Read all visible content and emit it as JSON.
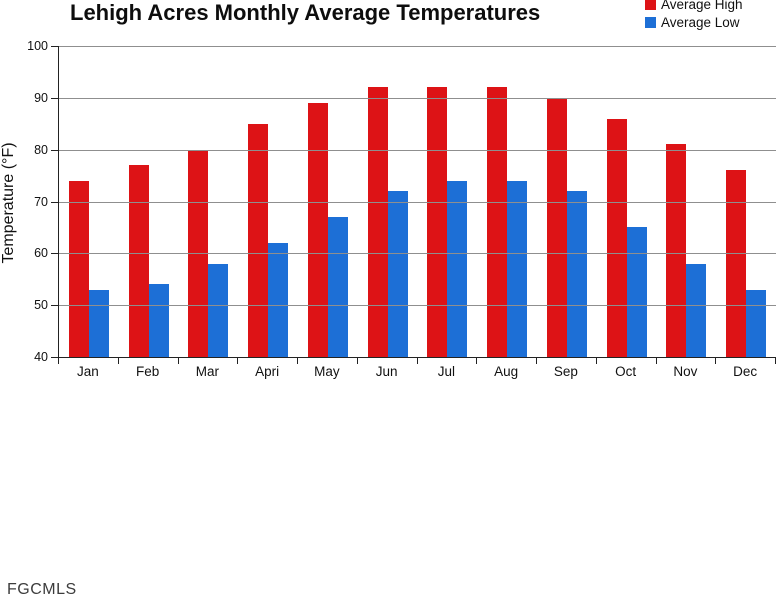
{
  "chart_data": {
    "type": "bar",
    "title": "Lehigh Acres Monthly Average Temperatures",
    "ylabel": "Temperature (°F)",
    "categories": [
      "Jan",
      "Feb",
      "Mar",
      "Apri",
      "May",
      "Jun",
      "Jul",
      "Aug",
      "Sep",
      "Oct",
      "Nov",
      "Dec"
    ],
    "series": [
      {
        "name": "Average High",
        "color": "#dd1316",
        "values": [
          74,
          77,
          80,
          85,
          89,
          92,
          92,
          92,
          90,
          86,
          81,
          76
        ]
      },
      {
        "name": "Average Low",
        "color": "#1d6fd6",
        "values": [
          53,
          54,
          58,
          62,
          67,
          72,
          74,
          74,
          72,
          65,
          58,
          53
        ]
      }
    ],
    "ylim": [
      40,
      100
    ],
    "yticks": [
      100,
      90,
      80,
      70,
      60,
      50,
      40
    ],
    "grid": true,
    "legend_position": "top-right",
    "gridline_color": "#8f8f8f",
    "axis_color": "#222222"
  },
  "watermark": "FGCMLS"
}
